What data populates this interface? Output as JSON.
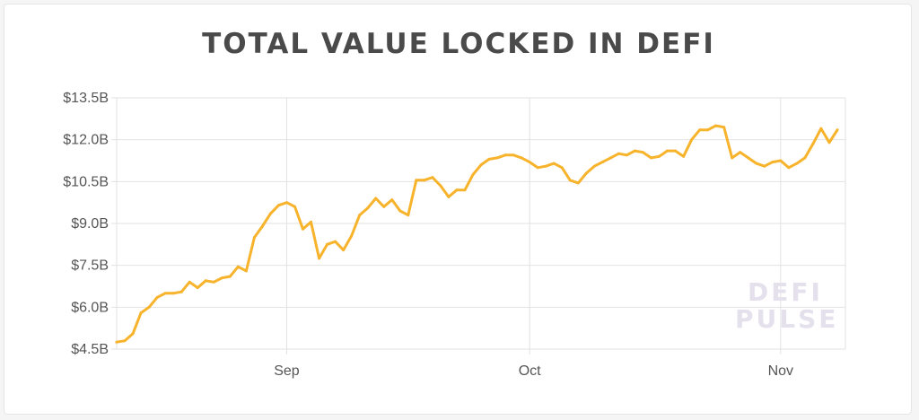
{
  "colors": {
    "line": "#f7b32b",
    "grid": "#e2e2e2",
    "title": "#4a4a4a",
    "watermark": "#e4e1ec"
  },
  "watermark": {
    "line1": "DEFI",
    "line2": "PULSE"
  },
  "chart_data": {
    "type": "line",
    "title": "TOTAL VALUE LOCKED IN DEFI",
    "xlabel": "",
    "ylabel": "",
    "grid": true,
    "ylim": [
      4.5,
      13.5
    ],
    "y_ticks": [
      {
        "value": 4.5,
        "label": "$4.5B"
      },
      {
        "value": 6.0,
        "label": "$6.0B"
      },
      {
        "value": 7.5,
        "label": "$7.5B"
      },
      {
        "value": 9.0,
        "label": "$9.0B"
      },
      {
        "value": 10.5,
        "label": "$10.5B"
      },
      {
        "value": 12.0,
        "label": "$12.0B"
      },
      {
        "value": 13.5,
        "label": "$13.5B"
      }
    ],
    "x_ticks": [
      {
        "date": "2020-09-01",
        "label": "Sep"
      },
      {
        "date": "2020-10-01",
        "label": "Oct"
      },
      {
        "date": "2020-11-01",
        "label": "Nov"
      }
    ],
    "x_range": [
      "2020-08-11",
      "2020-11-09"
    ],
    "series": [
      {
        "points": [
          [
            "2020-08-11",
            4.75
          ],
          [
            "2020-08-12",
            4.8
          ],
          [
            "2020-08-13",
            5.05
          ],
          [
            "2020-08-14",
            5.8
          ],
          [
            "2020-08-15",
            6.0
          ],
          [
            "2020-08-16",
            6.35
          ],
          [
            "2020-08-17",
            6.5
          ],
          [
            "2020-08-18",
            6.5
          ],
          [
            "2020-08-19",
            6.55
          ],
          [
            "2020-08-20",
            6.9
          ],
          [
            "2020-08-21",
            6.7
          ],
          [
            "2020-08-22",
            6.95
          ],
          [
            "2020-08-23",
            6.9
          ],
          [
            "2020-08-24",
            7.05
          ],
          [
            "2020-08-25",
            7.1
          ],
          [
            "2020-08-26",
            7.45
          ],
          [
            "2020-08-27",
            7.3
          ],
          [
            "2020-08-28",
            8.5
          ],
          [
            "2020-08-29",
            8.9
          ],
          [
            "2020-08-30",
            9.35
          ],
          [
            "2020-08-31",
            9.65
          ],
          [
            "2020-09-01",
            9.75
          ],
          [
            "2020-09-02",
            9.6
          ],
          [
            "2020-09-03",
            8.8
          ],
          [
            "2020-09-04",
            9.05
          ],
          [
            "2020-09-05",
            7.75
          ],
          [
            "2020-09-06",
            8.25
          ],
          [
            "2020-09-07",
            8.35
          ],
          [
            "2020-09-08",
            8.05
          ],
          [
            "2020-09-09",
            8.55
          ],
          [
            "2020-09-10",
            9.3
          ],
          [
            "2020-09-11",
            9.55
          ],
          [
            "2020-09-12",
            9.9
          ],
          [
            "2020-09-13",
            9.6
          ],
          [
            "2020-09-14",
            9.85
          ],
          [
            "2020-09-15",
            9.45
          ],
          [
            "2020-09-16",
            9.3
          ],
          [
            "2020-09-17",
            10.55
          ],
          [
            "2020-09-18",
            10.55
          ],
          [
            "2020-09-19",
            10.65
          ],
          [
            "2020-09-20",
            10.35
          ],
          [
            "2020-09-21",
            9.95
          ],
          [
            "2020-09-22",
            10.2
          ],
          [
            "2020-09-23",
            10.2
          ],
          [
            "2020-09-24",
            10.75
          ],
          [
            "2020-09-25",
            11.1
          ],
          [
            "2020-09-26",
            11.3
          ],
          [
            "2020-09-27",
            11.35
          ],
          [
            "2020-09-28",
            11.45
          ],
          [
            "2020-09-29",
            11.45
          ],
          [
            "2020-09-30",
            11.35
          ],
          [
            "2020-10-01",
            11.2
          ],
          [
            "2020-10-02",
            11.0
          ],
          [
            "2020-10-03",
            11.05
          ],
          [
            "2020-10-04",
            11.15
          ],
          [
            "2020-10-05",
            11.0
          ],
          [
            "2020-10-06",
            10.55
          ],
          [
            "2020-10-07",
            10.45
          ],
          [
            "2020-10-08",
            10.8
          ],
          [
            "2020-10-09",
            11.05
          ],
          [
            "2020-10-10",
            11.2
          ],
          [
            "2020-10-11",
            11.35
          ],
          [
            "2020-10-12",
            11.5
          ],
          [
            "2020-10-13",
            11.45
          ],
          [
            "2020-10-14",
            11.6
          ],
          [
            "2020-10-15",
            11.55
          ],
          [
            "2020-10-16",
            11.35
          ],
          [
            "2020-10-17",
            11.4
          ],
          [
            "2020-10-18",
            11.6
          ],
          [
            "2020-10-19",
            11.6
          ],
          [
            "2020-10-20",
            11.4
          ],
          [
            "2020-10-21",
            12.0
          ],
          [
            "2020-10-22",
            12.35
          ],
          [
            "2020-10-23",
            12.35
          ],
          [
            "2020-10-24",
            12.5
          ],
          [
            "2020-10-25",
            12.45
          ],
          [
            "2020-10-26",
            11.35
          ],
          [
            "2020-10-27",
            11.55
          ],
          [
            "2020-10-28",
            11.35
          ],
          [
            "2020-10-29",
            11.15
          ],
          [
            "2020-10-30",
            11.05
          ],
          [
            "2020-10-31",
            11.2
          ],
          [
            "2020-11-01",
            11.25
          ],
          [
            "2020-11-02",
            11.0
          ],
          [
            "2020-11-03",
            11.15
          ],
          [
            "2020-11-04",
            11.35
          ],
          [
            "2020-11-05",
            11.85
          ],
          [
            "2020-11-06",
            12.4
          ],
          [
            "2020-11-07",
            11.9
          ],
          [
            "2020-11-08",
            12.35
          ]
        ]
      }
    ]
  }
}
